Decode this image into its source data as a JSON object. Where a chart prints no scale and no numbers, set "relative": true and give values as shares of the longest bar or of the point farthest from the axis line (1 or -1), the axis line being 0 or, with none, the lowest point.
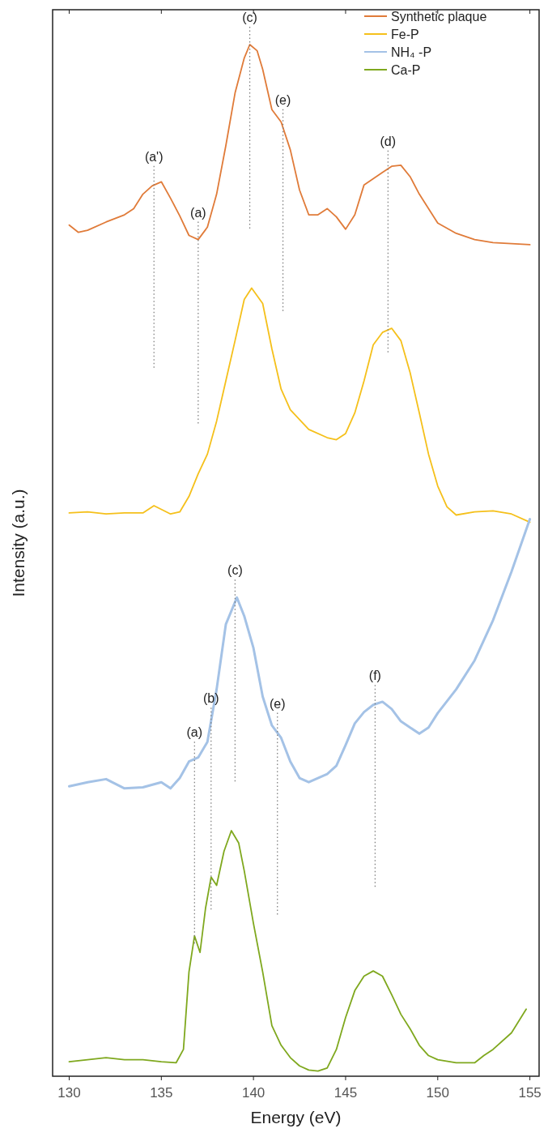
{
  "chart_data": {
    "type": "line",
    "relative": true,
    "xlabel": "Energy (eV)",
    "ylabel": "Intensity (a.u.)",
    "xlim": [
      129.1,
      155.5
    ],
    "xticks": [
      130,
      135,
      140,
      145,
      150,
      155
    ],
    "legend": "top right",
    "grid": false,
    "line_style": "solid",
    "marker": "none",
    "series": [
      {
        "name": "Synthetic plaque",
        "color": "#e07b39",
        "x": [
          130,
          130.5,
          131,
          132,
          133,
          133.5,
          134,
          134.5,
          135,
          135.5,
          136,
          136.5,
          137,
          137.5,
          138,
          138.5,
          139,
          139.5,
          139.8,
          140.2,
          140.5,
          141,
          141.5,
          142,
          142.5,
          143,
          143.5,
          144,
          144.5,
          145,
          145.5,
          146,
          146.5,
          147,
          147.5,
          148,
          148.5,
          149,
          150,
          151,
          152,
          153,
          154,
          155
        ],
        "values": [
          0.825,
          0.818,
          0.82,
          0.828,
          0.835,
          0.841,
          0.855,
          0.863,
          0.867,
          0.851,
          0.834,
          0.815,
          0.811,
          0.823,
          0.855,
          0.902,
          0.953,
          0.987,
          1.0,
          0.994,
          0.976,
          0.937,
          0.925,
          0.898,
          0.859,
          0.835,
          0.835,
          0.841,
          0.833,
          0.821,
          0.835,
          0.864,
          0.87,
          0.876,
          0.882,
          0.883,
          0.872,
          0.855,
          0.827,
          0.817,
          0.811,
          0.808,
          0.807,
          0.806
        ]
      },
      {
        "name": "Fe-P",
        "color": "#f5c01b",
        "x": [
          130,
          131,
          132,
          133,
          134,
          134.6,
          135.5,
          136,
          136.5,
          137,
          137.5,
          138,
          138.5,
          139,
          139.5,
          139.9,
          140.5,
          141,
          141.5,
          142,
          143,
          144,
          144.5,
          145,
          145.5,
          146,
          146.5,
          147,
          147.5,
          148,
          148.5,
          149,
          149.5,
          150,
          150.5,
          151,
          152,
          153,
          154,
          155
        ],
        "values": [
          0.546,
          0.547,
          0.545,
          0.546,
          0.546,
          0.553,
          0.545,
          0.547,
          0.562,
          0.584,
          0.603,
          0.635,
          0.674,
          0.713,
          0.753,
          0.764,
          0.749,
          0.705,
          0.666,
          0.646,
          0.627,
          0.619,
          0.617,
          0.623,
          0.643,
          0.674,
          0.709,
          0.721,
          0.725,
          0.713,
          0.682,
          0.643,
          0.603,
          0.572,
          0.552,
          0.544,
          0.547,
          0.548,
          0.545,
          0.537
        ]
      },
      {
        "name": "NH₄ -P",
        "color": "#a4c2e6",
        "x": [
          130,
          131,
          132,
          133,
          134,
          135,
          135.5,
          136,
          136.5,
          137,
          137.5,
          138,
          138.5,
          139.1,
          139.5,
          140,
          140.5,
          141,
          141.5,
          142,
          142.5,
          143,
          144,
          144.5,
          145,
          145.5,
          146,
          146.5,
          147,
          147.5,
          148,
          148.5,
          149,
          149.5,
          150,
          151,
          152,
          153,
          154,
          155
        ],
        "values": [
          0.281,
          0.285,
          0.288,
          0.279,
          0.28,
          0.285,
          0.279,
          0.289,
          0.305,
          0.309,
          0.324,
          0.375,
          0.438,
          0.464,
          0.446,
          0.415,
          0.368,
          0.34,
          0.328,
          0.305,
          0.289,
          0.285,
          0.293,
          0.301,
          0.321,
          0.342,
          0.353,
          0.36,
          0.363,
          0.356,
          0.344,
          0.338,
          0.332,
          0.338,
          0.352,
          0.375,
          0.403,
          0.442,
          0.489,
          0.54
        ]
      },
      {
        "name": "Ca-P",
        "color": "#7fa81e",
        "x": [
          130,
          131,
          132,
          133,
          134,
          135,
          135.8,
          136.2,
          136.5,
          136.8,
          137.1,
          137.4,
          137.7,
          138,
          138.4,
          138.8,
          139.2,
          139.5,
          140,
          140.5,
          141,
          141.5,
          142,
          142.5,
          143,
          143.5,
          144,
          144.5,
          145,
          145.5,
          146,
          146.5,
          147,
          147.5,
          148,
          148.5,
          149,
          149.5,
          150,
          151,
          152,
          152.5,
          153,
          154,
          154.8
        ],
        "values": [
          0.014,
          0.016,
          0.018,
          0.016,
          0.016,
          0.014,
          0.013,
          0.026,
          0.101,
          0.136,
          0.12,
          0.163,
          0.193,
          0.185,
          0.218,
          0.238,
          0.226,
          0.199,
          0.148,
          0.101,
          0.049,
          0.03,
          0.018,
          0.01,
          0.006,
          0.005,
          0.008,
          0.026,
          0.057,
          0.083,
          0.097,
          0.102,
          0.097,
          0.079,
          0.06,
          0.046,
          0.03,
          0.02,
          0.016,
          0.013,
          0.013,
          0.02,
          0.026,
          0.042,
          0.065
        ]
      }
    ],
    "annotations": [
      {
        "text": "(a')",
        "x": 134.6,
        "y": 0.865
      },
      {
        "text": "(a)",
        "x": 137.0,
        "y": 0.811
      },
      {
        "text": "(c)",
        "x": 139.8,
        "y": 1.0
      },
      {
        "text": "(e)",
        "x": 141.6,
        "y": 0.92
      },
      {
        "text": "(d)",
        "x": 147.3,
        "y": 0.88
      },
      {
        "text": "(a)",
        "x": 136.8,
        "y": 0.307
      },
      {
        "text": "(b)",
        "x": 137.7,
        "y": 0.34
      },
      {
        "text": "(c)",
        "x": 139.0,
        "y": 0.464
      },
      {
        "text": "(e)",
        "x": 141.3,
        "y": 0.335
      },
      {
        "text": "(f)",
        "x": 146.6,
        "y": 0.362
      }
    ]
  }
}
